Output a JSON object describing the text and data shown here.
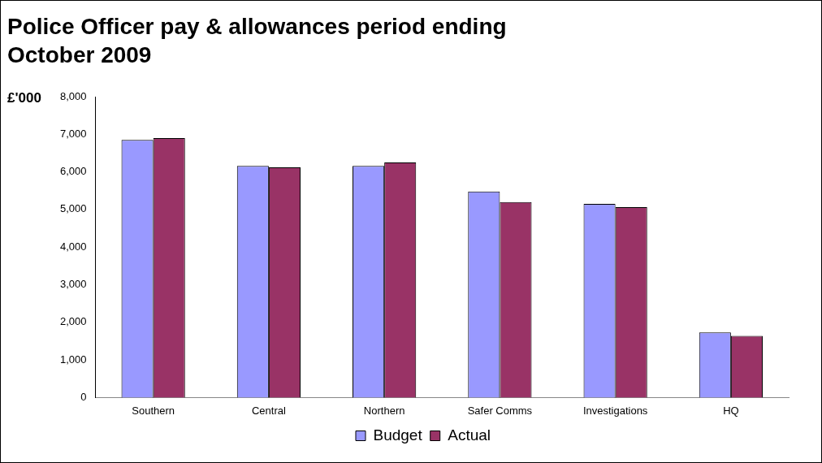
{
  "chart_data": {
    "type": "bar",
    "title": [
      "Police Officer pay & allowances period ending",
      "October 2009"
    ],
    "ylabel": "£'000",
    "categories": [
      "Southern",
      "Central",
      "Northern",
      "Safer Comms",
      "Investigations",
      "HQ"
    ],
    "series": [
      {
        "name": "Budget",
        "color": "#9999ff",
        "values": [
          6850,
          6160,
          6160,
          5480,
          5150,
          1730
        ]
      },
      {
        "name": "Actual",
        "color": "#993366",
        "values": [
          6900,
          6120,
          6250,
          5200,
          5060,
          1640
        ]
      }
    ],
    "ylim": [
      0,
      8000
    ],
    "yticks": [
      {
        "value": 0,
        "label": "0"
      },
      {
        "value": 1000,
        "label": "1,000"
      },
      {
        "value": 2000,
        "label": "2,000"
      },
      {
        "value": 3000,
        "label": "3,000"
      },
      {
        "value": 4000,
        "label": "4,000"
      },
      {
        "value": 5000,
        "label": "5,000"
      },
      {
        "value": 6000,
        "label": "6,000"
      },
      {
        "value": 7000,
        "label": "7,000"
      },
      {
        "value": 8000,
        "label": "8,000"
      }
    ],
    "grid": false,
    "legend": "bottom"
  }
}
